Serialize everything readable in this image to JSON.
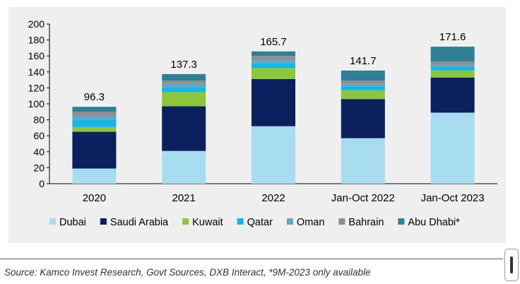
{
  "chart_data": {
    "type": "bar",
    "stacked": true,
    "categories": [
      "2020",
      "2021",
      "2022",
      "Jan-Oct 2022",
      "Jan-Oct 2023"
    ],
    "totals": [
      "96.3",
      "137.3",
      "165.7",
      "141.7",
      "171.6"
    ],
    "series": [
      {
        "name": "Dubai",
        "color": "#a8dcf0",
        "values": [
          19,
          41,
          72,
          57,
          89
        ]
      },
      {
        "name": "Saudi Arabia",
        "color": "#0c1f5e",
        "values": [
          46,
          56,
          59,
          49,
          44
        ]
      },
      {
        "name": "Kuwait",
        "color": "#8cc63f",
        "values": [
          6,
          18,
          14,
          11,
          9
        ]
      },
      {
        "name": "Qatar",
        "color": "#12b6ea",
        "values": [
          9,
          6,
          6,
          5,
          4
        ]
      },
      {
        "name": "Oman",
        "color": "#62a8c4",
        "values": [
          5,
          4,
          4,
          3,
          3
        ]
      },
      {
        "name": "Bahrain",
        "color": "#8e8e8e",
        "values": [
          5,
          4,
          5,
          4,
          4
        ]
      },
      {
        "name": "Abu Dhabi*",
        "color": "#2f7f96",
        "values": [
          6.3,
          8.3,
          5.7,
          12.7,
          18.6
        ]
      }
    ],
    "y_ticks": [
      "0",
      "20",
      "40",
      "60",
      "80",
      "100",
      "120",
      "140",
      "160",
      "180",
      "200"
    ],
    "ylim": [
      0,
      200
    ],
    "title": "",
    "xlabel": "",
    "ylabel": "",
    "legend_position": "bottom"
  },
  "source_note": "Source: Kamco Invest Research,  Govt Sources, DXB Interact,  *9M-2023 only available"
}
